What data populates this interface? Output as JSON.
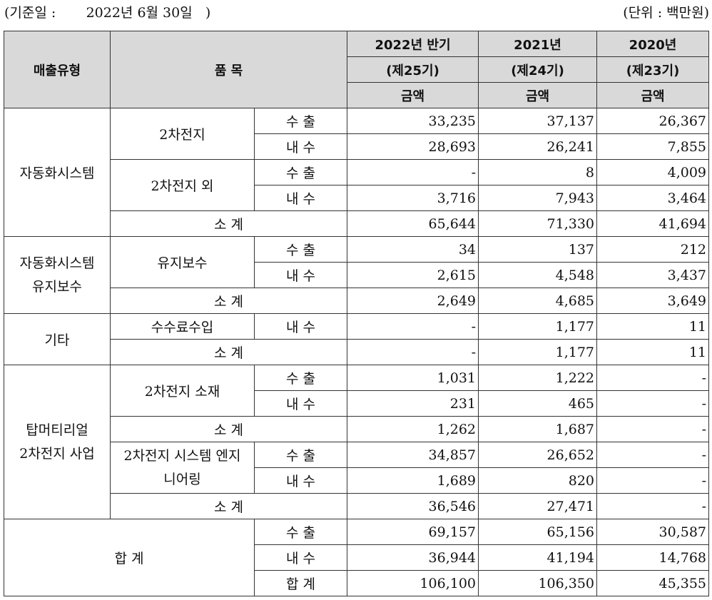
{
  "header": {
    "base_date": "(기준일 :       2022년 6월 30일   )",
    "unit": "(단위 : 백만원)"
  },
  "columns": {
    "type": "매출유형",
    "item": "품 목",
    "periods": [
      {
        "year": "2022년 반기",
        "term": "(제25기)",
        "amount": "금액"
      },
      {
        "year": "2021년",
        "term": "(제24기)",
        "amount": "금액"
      },
      {
        "year": "2020년",
        "term": "(제23기)",
        "amount": "금액"
      }
    ]
  },
  "labels": {
    "export": "수 출",
    "domestic": "내 수",
    "subtotal": "소 계",
    "total": "합 계"
  },
  "groups": {
    "auto": {
      "name": "자동화시스템",
      "battery": "2차전지",
      "battery_export": [
        "33,235",
        "37,137",
        "26,367"
      ],
      "battery_domestic": [
        "28,693",
        "26,241",
        "7,855"
      ],
      "other": "2차전지 외",
      "other_export": [
        "-",
        "8",
        "4,009"
      ],
      "other_domestic": [
        "3,716",
        "7,943",
        "3,464"
      ],
      "subtotal": [
        "65,644",
        "71,330",
        "41,694"
      ]
    },
    "maint": {
      "name1": "자동화시스템",
      "name2": "유지보수",
      "item": "유지보수",
      "export": [
        "34",
        "137",
        "212"
      ],
      "domestic": [
        "2,615",
        "4,548",
        "3,437"
      ],
      "subtotal": [
        "2,649",
        "4,685",
        "3,649"
      ]
    },
    "etc": {
      "name": "기타",
      "item": "수수료수입",
      "domestic": [
        "-",
        "1,177",
        "11"
      ],
      "subtotal": [
        "-",
        "1,177",
        "11"
      ]
    },
    "top": {
      "name1": "탑머티리얼",
      "name2": "2차전지 사업",
      "material": "2차전지 소재",
      "material_export": [
        "1,031",
        "1,222",
        "-"
      ],
      "material_domestic": [
        "231",
        "465",
        "-"
      ],
      "material_subtotal": [
        "1,262",
        "1,687",
        "-"
      ],
      "eng1": "2차전지 시스템 엔지",
      "eng2": "니어링",
      "eng_export": [
        "34,857",
        "26,652",
        "-"
      ],
      "eng_domestic": [
        "1,689",
        "820",
        "-"
      ],
      "eng_subtotal": [
        "36,546",
        "27,471",
        "-"
      ]
    },
    "total": {
      "name": "합 계",
      "export": [
        "69,157",
        "65,156",
        "30,587"
      ],
      "domestic": [
        "36,944",
        "41,194",
        "14,768"
      ],
      "sum": [
        "106,100",
        "106,350",
        "45,355"
      ]
    }
  }
}
